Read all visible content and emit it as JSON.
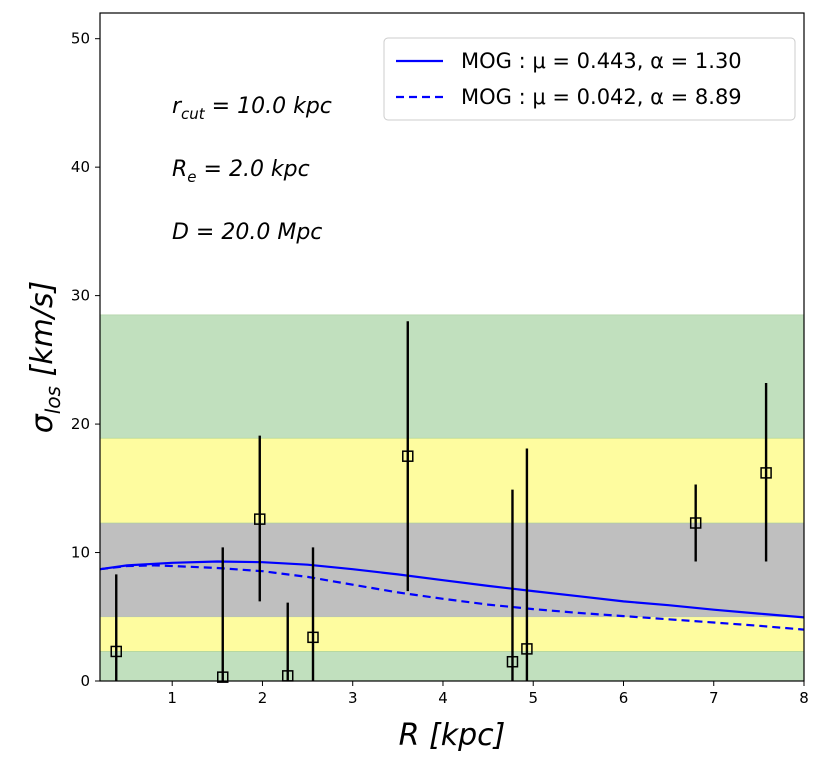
{
  "chart_data": {
    "type": "scatter",
    "xlabel": "R [kpc]",
    "ylabel": "σ_los [km/s]",
    "xlim": [
      0.2,
      8
    ],
    "ylim": [
      0,
      52
    ],
    "x_ticks": [
      1,
      2,
      3,
      4,
      5,
      6,
      7,
      8
    ],
    "y_ticks": [
      0,
      10,
      20,
      30,
      40,
      50
    ],
    "grid": false,
    "legend_position": "top-right",
    "bands": [
      {
        "y0": 0,
        "y1": 2.3,
        "color": "#c1e0be"
      },
      {
        "y0": 2.3,
        "y1": 5.0,
        "color": "#fefc9f"
      },
      {
        "y0": 5.0,
        "y1": 12.3,
        "color": "#bfbfbf"
      },
      {
        "y0": 12.3,
        "y1": 18.9,
        "color": "#fefc9f"
      },
      {
        "y0": 18.9,
        "y1": 28.5,
        "color": "#c1e0be"
      }
    ],
    "points": [
      {
        "x": 0.38,
        "y": 2.3,
        "err_low": 2.3,
        "err_high": 6.0
      },
      {
        "x": 1.56,
        "y": 0.3,
        "err_low": 0.3,
        "err_high": 10.1
      },
      {
        "x": 1.97,
        "y": 12.6,
        "err_low": 6.4,
        "err_high": 6.5
      },
      {
        "x": 2.28,
        "y": 0.4,
        "err_low": 0.4,
        "err_high": 5.7
      },
      {
        "x": 2.56,
        "y": 3.4,
        "err_low": 3.4,
        "err_high": 7.0
      },
      {
        "x": 3.61,
        "y": 17.5,
        "err_low": 10.5,
        "err_high": 10.5
      },
      {
        "x": 4.77,
        "y": 1.5,
        "err_low": 1.5,
        "err_high": 13.4
      },
      {
        "x": 4.93,
        "y": 2.5,
        "err_low": 2.5,
        "err_high": 15.6
      },
      {
        "x": 6.8,
        "y": 12.3,
        "err_low": 3.0,
        "err_high": 3.0
      },
      {
        "x": 7.58,
        "y": 16.2,
        "err_low": 6.9,
        "err_high": 7.0
      }
    ],
    "series": [
      {
        "name": "MOG: μ=0.443, α=1.30",
        "style": "solid",
        "color": "#0000ff",
        "x": [
          0.2,
          0.5,
          1.0,
          1.5,
          2.0,
          2.5,
          3.0,
          3.5,
          4.0,
          4.5,
          5.0,
          5.5,
          6.0,
          6.5,
          7.0,
          7.5,
          8.0
        ],
        "y": [
          8.7,
          9.0,
          9.2,
          9.3,
          9.25,
          9.05,
          8.7,
          8.3,
          7.85,
          7.4,
          7.0,
          6.6,
          6.2,
          5.9,
          5.55,
          5.25,
          4.95
        ]
      },
      {
        "name": "MOG: μ=0.042, α=8.89",
        "style": "dashed",
        "color": "#0000ff",
        "x": [
          0.2,
          0.5,
          0.8,
          1.0,
          1.5,
          2.0,
          2.5,
          3.0,
          3.5,
          4.0,
          4.5,
          5.0,
          5.5,
          6.0,
          6.5,
          7.0,
          7.5,
          8.0
        ],
        "y": [
          8.7,
          8.95,
          9.0,
          8.95,
          8.8,
          8.55,
          8.1,
          7.5,
          6.9,
          6.4,
          5.95,
          5.6,
          5.3,
          5.05,
          4.8,
          4.55,
          4.3,
          4.0
        ]
      }
    ],
    "annotations": [
      "r_cut = 10.0 kpc",
      "R_e = 2.0 kpc",
      "D = 20.0 Mpc"
    ]
  },
  "annotations": {
    "rcut": {
      "main": "r",
      "sub": "cut",
      "rest": " = 10.0 kpc"
    },
    "re": {
      "main": "R",
      "sub": "e",
      "rest": " = 2.0 kpc"
    },
    "d": {
      "text": "D = 20.0 Mpc"
    }
  },
  "axis_labels": {
    "x": "R [kpc]",
    "y_main": "σ",
    "y_sub": "los",
    "y_rest": " [km/s]"
  },
  "legend": {
    "entries": [
      {
        "label": "MOG : μ = 0.443,  α = 1.30",
        "style": "solid"
      },
      {
        "label": "MOG : μ = 0.042,  α = 8.89",
        "style": "dashed"
      }
    ]
  },
  "colors": {
    "model_line": "#0000ff",
    "green_band": "#c1e0be",
    "yellow_band": "#fefc9f",
    "gray_band": "#bfbfbf"
  }
}
